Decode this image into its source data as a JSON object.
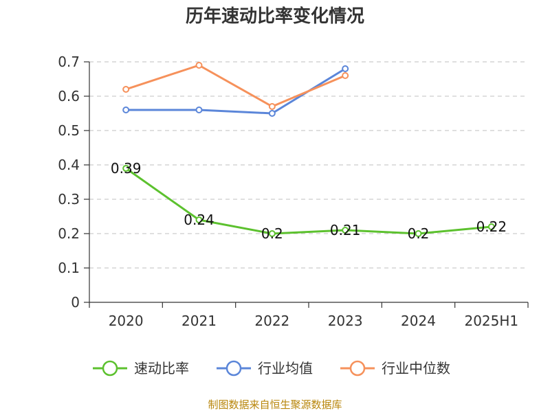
{
  "chart_data": {
    "type": "line",
    "title": "历年速动比率变化情况",
    "categories": [
      "2020",
      "2021",
      "2022",
      "2023",
      "2024",
      "2025H1"
    ],
    "ylim": [
      0,
      0.7
    ],
    "yticks": [
      "0",
      "0.1",
      "0.2",
      "0.3",
      "0.4",
      "0.5",
      "0.6",
      "0.7"
    ],
    "grid": true,
    "legend_position": "bottom",
    "series": [
      {
        "name": "速动比率",
        "color": "#5cc12e",
        "values": [
          0.39,
          0.24,
          0.2,
          0.21,
          0.2,
          0.22
        ],
        "labels": [
          "0.39",
          "0.24",
          "0.2",
          "0.21",
          "0.2",
          "0.22"
        ]
      },
      {
        "name": "行业均值",
        "color": "#5b86d9",
        "values": [
          0.56,
          0.56,
          0.55,
          0.68,
          null,
          null
        ]
      },
      {
        "name": "行业中位数",
        "color": "#f6915b",
        "values": [
          0.62,
          0.69,
          0.57,
          0.66,
          null,
          null
        ]
      }
    ]
  },
  "source": "制图数据来自恒生聚源数据库"
}
